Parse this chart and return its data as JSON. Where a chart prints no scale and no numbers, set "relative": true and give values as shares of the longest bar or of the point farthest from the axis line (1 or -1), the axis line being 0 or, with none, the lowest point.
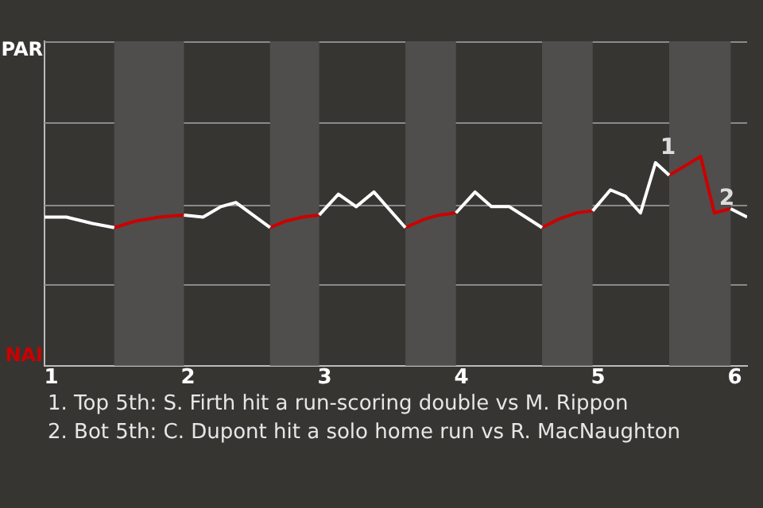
{
  "chart_data": {
    "type": "line",
    "relative": true,
    "x": [
      0.95,
      1.11,
      1.3,
      1.46,
      1.61,
      1.79,
      1.97,
      2.11,
      2.24,
      2.35,
      2.6,
      2.71,
      2.84,
      2.96,
      3.1,
      3.23,
      3.36,
      3.59,
      3.73,
      3.84,
      3.96,
      4.1,
      4.22,
      4.35,
      4.47,
      4.59,
      4.71,
      4.84,
      4.96,
      5.09,
      5.2,
      5.31,
      5.42,
      5.52,
      5.65,
      5.75,
      5.85,
      5.97,
      6.09
    ],
    "series": [
      {
        "color": "#ffffff",
        "values": [
          0.71,
          0.71,
          0.68,
          0.66,
          null,
          null,
          0.72,
          0.71,
          0.76,
          0.78,
          0.66,
          null,
          null,
          0.72,
          0.82,
          0.76,
          0.83,
          0.66,
          null,
          null,
          0.73,
          0.83,
          0.76,
          0.76,
          0.71,
          0.66,
          null,
          null,
          0.74,
          0.84,
          0.81,
          0.73,
          0.97,
          0.91,
          null,
          null,
          null,
          0.75,
          0.71
        ]
      },
      {
        "color": "#cc0000",
        "values": [
          null,
          null,
          null,
          0.66,
          0.69,
          0.71,
          0.72,
          null,
          null,
          null,
          0.66,
          0.69,
          0.71,
          0.72,
          null,
          null,
          null,
          0.66,
          0.7,
          0.72,
          0.73,
          null,
          null,
          null,
          null,
          0.66,
          0.7,
          0.73,
          0.74,
          null,
          null,
          null,
          null,
          0.91,
          0.96,
          1,
          0.73,
          0.75,
          null
        ]
      }
    ],
    "xlim": [
      0.95,
      6.09
    ],
    "xticks": [
      1,
      2,
      3,
      4,
      5,
      6
    ],
    "ref_lines": [
      {
        "axis": "y",
        "value": 0.39,
        "color": "#8a8a8a"
      },
      {
        "axis": "y",
        "value": 0.77,
        "color": "#8a8a8a"
      },
      {
        "axis": "y",
        "value": 1.16,
        "color": "#8a8a8a"
      },
      {
        "axis": "y",
        "value": 1.55,
        "color": "#8a8a8a"
      }
    ],
    "marker": "none",
    "line_style": "solid",
    "bands": [
      {
        "axis": "x",
        "from": 1.46,
        "to": 1.97,
        "color": "#4f4e4c"
      },
      {
        "axis": "x",
        "from": 2.6,
        "to": 2.96,
        "color": "#4f4e4c"
      },
      {
        "axis": "x",
        "from": 3.59,
        "to": 3.96,
        "color": "#4f4e4c"
      },
      {
        "axis": "x",
        "from": 4.59,
        "to": 4.96,
        "color": "#4f4e4c"
      },
      {
        "axis": "x",
        "from": 5.52,
        "to": 5.97,
        "color": "#4f4e4c"
      }
    ],
    "annotations": [
      "PAR",
      "NAI",
      {
        "text": "1",
        "x": 5.42,
        "y": 0.97
      },
      {
        "text": "2",
        "x": 5.85,
        "y": 0.73
      },
      "1. Top 5th: S. Firth hit a run-scoring double vs M. Rippon",
      "2. Bot 5th: C. Dupont hit a solo home run vs R. MacNaughton"
    ]
  }
}
